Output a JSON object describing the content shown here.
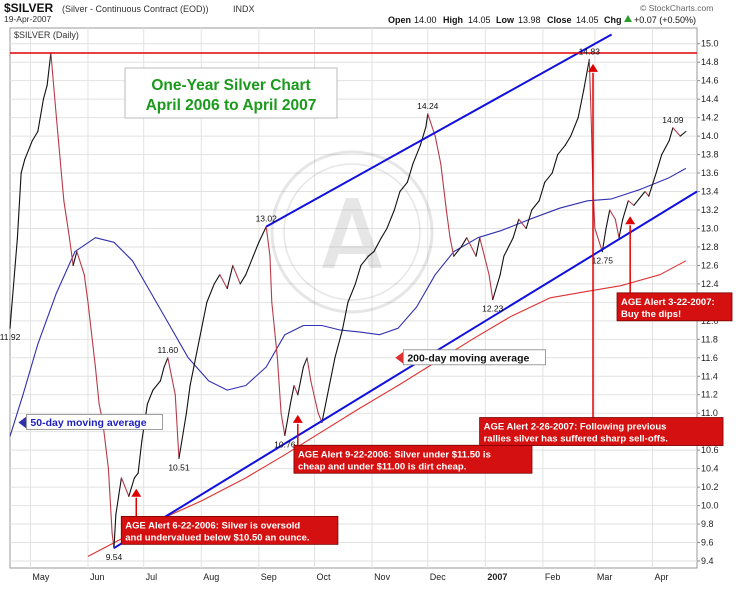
{
  "header": {
    "symbol": "$SILVER",
    "description": "(Silver - Continuous Contract (EOD))",
    "exchange": "INDX",
    "date": "19-Apr-2007",
    "open_label": "Open",
    "open": "14.00",
    "high_label": "High",
    "high": "14.05",
    "low_label": "Low",
    "low": "13.98",
    "close_label": "Close",
    "close": "14.05",
    "chg_label": "Chg",
    "chg": "+0.07 (+0.50%)",
    "up_arrow_color": "#2a9d2a",
    "watermark_url": "© StockCharts.com",
    "panel_label": "$SILVER (Daily)"
  },
  "title_box": {
    "line1": "One-Year Silver Chart",
    "line2": "April 2006 to April 2007",
    "color": "#1a9a1a"
  },
  "colors": {
    "price": "#b83a4a",
    "price_up": "#111111",
    "ma50": "#3030b0",
    "ma200": "#e03030",
    "trendline": "#1010e0",
    "resistance": "#e00000",
    "alert_bg": "#d41010",
    "arrow": "#e00000",
    "grid": "#e2e2e2"
  },
  "chart_data": {
    "type": "line",
    "title": "One-Year Silver Chart",
    "subtitle": "April 2006 to April 2007",
    "x_ticks": [
      "May",
      "Jun",
      "Jul",
      "Aug",
      "Sep",
      "Oct",
      "Nov",
      "Dec",
      "2007",
      "Feb",
      "Mar",
      "Apr"
    ],
    "x_domain": [
      "2006-04-20",
      "2007-04-25"
    ],
    "ylim": [
      9.4,
      15.1
    ],
    "y_ticks": [
      "9.4",
      "9.6",
      "9.8",
      "10.0",
      "10.2",
      "10.4",
      "10.6",
      "10.8",
      "11.0",
      "11.2",
      "11.4",
      "11.6",
      "11.8",
      "12.0",
      "12.2",
      "12.4",
      "12.6",
      "12.8",
      "13.0",
      "13.2",
      "13.4",
      "13.6",
      "13.8",
      "14.0",
      "14.2",
      "14.4",
      "14.6",
      "14.8",
      "15.0"
    ],
    "y_scale": "linear",
    "grid": true,
    "series": [
      {
        "name": "$SILVER",
        "points": [
          [
            "2006-04-20",
            11.92
          ],
          [
            "2006-04-24",
            12.9
          ],
          [
            "2006-04-26",
            13.6
          ],
          [
            "2006-04-28",
            13.75
          ],
          [
            "2006-05-02",
            13.95
          ],
          [
            "2006-05-05",
            14.05
          ],
          [
            "2006-05-08",
            14.4
          ],
          [
            "2006-05-10",
            14.55
          ],
          [
            "2006-05-12",
            14.9
          ],
          [
            "2006-05-15",
            14.2
          ],
          [
            "2006-05-17",
            13.75
          ],
          [
            "2006-05-19",
            13.3
          ],
          [
            "2006-05-22",
            12.9
          ],
          [
            "2006-05-24",
            12.6
          ],
          [
            "2006-05-26",
            12.75
          ],
          [
            "2006-05-30",
            12.5
          ],
          [
            "2006-06-01",
            12.2
          ],
          [
            "2006-06-05",
            11.5
          ],
          [
            "2006-06-07",
            11.1
          ],
          [
            "2006-06-09",
            10.9
          ],
          [
            "2006-06-12",
            10.4
          ],
          [
            "2006-06-14",
            9.7
          ],
          [
            "2006-06-15",
            9.54
          ],
          [
            "2006-06-16",
            9.9
          ],
          [
            "2006-06-19",
            10.3
          ],
          [
            "2006-06-21",
            10.2
          ],
          [
            "2006-06-23",
            10.1
          ],
          [
            "2006-06-26",
            10.3
          ],
          [
            "2006-06-28",
            10.35
          ],
          [
            "2006-06-30",
            10.7
          ],
          [
            "2006-07-03",
            11.1
          ],
          [
            "2006-07-06",
            11.25
          ],
          [
            "2006-07-10",
            11.35
          ],
          [
            "2006-07-12",
            11.5
          ],
          [
            "2006-07-14",
            11.6
          ],
          [
            "2006-07-18",
            11.2
          ],
          [
            "2006-07-20",
            10.51
          ],
          [
            "2006-07-24",
            11.0
          ],
          [
            "2006-07-26",
            11.3
          ],
          [
            "2006-07-28",
            11.5
          ],
          [
            "2006-08-01",
            11.9
          ],
          [
            "2006-08-04",
            12.2
          ],
          [
            "2006-08-08",
            12.4
          ],
          [
            "2006-08-11",
            12.5
          ],
          [
            "2006-08-15",
            12.35
          ],
          [
            "2006-08-18",
            12.6
          ],
          [
            "2006-08-22",
            12.4
          ],
          [
            "2006-08-25",
            12.5
          ],
          [
            "2006-08-29",
            12.7
          ],
          [
            "2006-09-01",
            12.85
          ],
          [
            "2006-09-05",
            13.02
          ],
          [
            "2006-09-07",
            12.7
          ],
          [
            "2006-09-08",
            12.2
          ],
          [
            "2006-09-11",
            11.6
          ],
          [
            "2006-09-13",
            11.0
          ],
          [
            "2006-09-15",
            10.76
          ],
          [
            "2006-09-18",
            11.1
          ],
          [
            "2006-09-20",
            11.3
          ],
          [
            "2006-09-22",
            11.2
          ],
          [
            "2006-09-25",
            11.5
          ],
          [
            "2006-09-27",
            11.6
          ],
          [
            "2006-09-29",
            11.35
          ],
          [
            "2006-10-03",
            11.0
          ],
          [
            "2006-10-05",
            10.9
          ],
          [
            "2006-10-09",
            11.3
          ],
          [
            "2006-10-12",
            11.6
          ],
          [
            "2006-10-16",
            11.9
          ],
          [
            "2006-10-19",
            12.2
          ],
          [
            "2006-10-23",
            12.4
          ],
          [
            "2006-10-26",
            12.6
          ],
          [
            "2006-10-30",
            12.7
          ],
          [
            "2006-11-02",
            12.75
          ],
          [
            "2006-11-06",
            12.9
          ],
          [
            "2006-11-09",
            13.0
          ],
          [
            "2006-11-13",
            13.2
          ],
          [
            "2006-11-16",
            13.4
          ],
          [
            "2006-11-20",
            13.5
          ],
          [
            "2006-11-23",
            13.7
          ],
          [
            "2006-11-27",
            13.9
          ],
          [
            "2006-11-30",
            14.1
          ],
          [
            "2006-12-01",
            14.24
          ],
          [
            "2006-12-05",
            14.0
          ],
          [
            "2006-12-08",
            13.7
          ],
          [
            "2006-12-11",
            13.2
          ],
          [
            "2006-12-13",
            12.9
          ],
          [
            "2006-12-15",
            12.7
          ],
          [
            "2006-12-19",
            12.8
          ],
          [
            "2006-12-22",
            12.9
          ],
          [
            "2006-12-27",
            12.7
          ],
          [
            "2006-12-29",
            12.9
          ],
          [
            "2007-01-03",
            12.5
          ],
          [
            "2007-01-05",
            12.23
          ],
          [
            "2007-01-09",
            12.5
          ],
          [
            "2007-01-11",
            12.7
          ],
          [
            "2007-01-16",
            12.9
          ],
          [
            "2007-01-19",
            13.1
          ],
          [
            "2007-01-23",
            13.0
          ],
          [
            "2007-01-26",
            13.2
          ],
          [
            "2007-01-30",
            13.3
          ],
          [
            "2007-02-02",
            13.5
          ],
          [
            "2007-02-06",
            13.6
          ],
          [
            "2007-02-09",
            13.8
          ],
          [
            "2007-02-13",
            13.9
          ],
          [
            "2007-02-16",
            14.0
          ],
          [
            "2007-02-20",
            14.2
          ],
          [
            "2007-02-23",
            14.5
          ],
          [
            "2007-02-26",
            14.83
          ],
          [
            "2007-02-27",
            14.2
          ],
          [
            "2007-02-28",
            13.4
          ],
          [
            "2007-03-01",
            13.0
          ],
          [
            "2007-03-05",
            12.75
          ],
          [
            "2007-03-07",
            13.0
          ],
          [
            "2007-03-09",
            13.2
          ],
          [
            "2007-03-12",
            13.1
          ],
          [
            "2007-03-14",
            12.9
          ],
          [
            "2007-03-16",
            13.1
          ],
          [
            "2007-03-19",
            13.3
          ],
          [
            "2007-03-22",
            13.25
          ],
          [
            "2007-03-26",
            13.35
          ],
          [
            "2007-03-28",
            13.4
          ],
          [
            "2007-03-30",
            13.35
          ],
          [
            "2007-04-03",
            13.6
          ],
          [
            "2007-04-06",
            13.8
          ],
          [
            "2007-04-10",
            13.95
          ],
          [
            "2007-04-12",
            14.09
          ],
          [
            "2007-04-16",
            14.0
          ],
          [
            "2007-04-19",
            14.05
          ]
        ]
      },
      {
        "name": "50-day moving average",
        "points": [
          [
            "2006-04-20",
            10.75
          ],
          [
            "2006-04-27",
            11.2
          ],
          [
            "2006-05-05",
            11.75
          ],
          [
            "2006-05-15",
            12.3
          ],
          [
            "2006-05-25",
            12.75
          ],
          [
            "2006-06-05",
            12.9
          ],
          [
            "2006-06-15",
            12.85
          ],
          [
            "2006-06-25",
            12.65
          ],
          [
            "2006-07-05",
            12.3
          ],
          [
            "2006-07-15",
            11.95
          ],
          [
            "2006-07-25",
            11.6
          ],
          [
            "2006-08-05",
            11.35
          ],
          [
            "2006-08-15",
            11.25
          ],
          [
            "2006-08-25",
            11.3
          ],
          [
            "2006-09-05",
            11.5
          ],
          [
            "2006-09-15",
            11.85
          ],
          [
            "2006-09-25",
            11.95
          ],
          [
            "2006-10-05",
            11.95
          ],
          [
            "2006-10-15",
            11.9
          ],
          [
            "2006-10-25",
            11.88
          ],
          [
            "2006-11-05",
            11.85
          ],
          [
            "2006-11-15",
            11.92
          ],
          [
            "2006-11-25",
            12.15
          ],
          [
            "2006-12-05",
            12.5
          ],
          [
            "2006-12-15",
            12.75
          ],
          [
            "2006-12-28",
            12.9
          ],
          [
            "2007-01-10",
            12.98
          ],
          [
            "2007-01-25",
            13.1
          ],
          [
            "2007-02-10",
            13.22
          ],
          [
            "2007-02-25",
            13.3
          ],
          [
            "2007-03-10",
            13.32
          ],
          [
            "2007-03-25",
            13.42
          ],
          [
            "2007-04-10",
            13.55
          ],
          [
            "2007-04-19",
            13.65
          ]
        ]
      },
      {
        "name": "200-day moving average",
        "points": [
          [
            "2006-06-01",
            9.45
          ],
          [
            "2006-06-20",
            9.65
          ],
          [
            "2006-07-10",
            9.85
          ],
          [
            "2006-08-01",
            10.05
          ],
          [
            "2006-08-25",
            10.3
          ],
          [
            "2006-09-15",
            10.55
          ],
          [
            "2006-10-05",
            10.8
          ],
          [
            "2006-10-25",
            11.05
          ],
          [
            "2006-11-15",
            11.3
          ],
          [
            "2006-12-05",
            11.55
          ],
          [
            "2006-12-25",
            11.8
          ],
          [
            "2007-01-15",
            12.05
          ],
          [
            "2007-02-05",
            12.25
          ],
          [
            "2007-02-25",
            12.32
          ],
          [
            "2007-03-15",
            12.38
          ],
          [
            "2007-04-05",
            12.5
          ],
          [
            "2007-04-19",
            12.65
          ]
        ]
      }
    ],
    "upper_trendline": [
      [
        "2006-09-05",
        13.02
      ],
      [
        "2007-03-10",
        15.1
      ]
    ],
    "lower_trendline": [
      [
        "2006-06-15",
        9.54
      ],
      [
        "2007-04-25",
        13.4
      ]
    ],
    "resistance_level": 14.9,
    "point_labels": [
      {
        "date": "2006-04-20",
        "value": 11.92,
        "text": "11.92",
        "pos": "below"
      },
      {
        "date": "2006-06-15",
        "value": 9.54,
        "text": "9.54",
        "pos": "below"
      },
      {
        "date": "2006-07-14",
        "value": 11.6,
        "text": "11.60",
        "pos": "above"
      },
      {
        "date": "2006-07-20",
        "value": 10.51,
        "text": "10.51",
        "pos": "below"
      },
      {
        "date": "2006-09-05",
        "value": 13.02,
        "text": "13.02",
        "pos": "above"
      },
      {
        "date": "2006-09-15",
        "value": 10.76,
        "text": "10.76",
        "pos": "below"
      },
      {
        "date": "2006-12-01",
        "value": 14.24,
        "text": "14.24",
        "pos": "above"
      },
      {
        "date": "2007-01-05",
        "value": 12.23,
        "text": "12.23",
        "pos": "below"
      },
      {
        "date": "2007-02-26",
        "value": 14.83,
        "text": "14.83",
        "pos": "above"
      },
      {
        "date": "2007-03-05",
        "value": 12.75,
        "text": "12.75",
        "pos": "below"
      },
      {
        "date": "2007-04-12",
        "value": 14.09,
        "text": "14.09",
        "pos": "above"
      }
    ],
    "ma_labels": [
      {
        "text": "50-day moving average",
        "date": "2006-05-01",
        "value": 10.9,
        "color": "#2020c0"
      },
      {
        "text": "200-day moving average",
        "date": "2006-11-20",
        "value": 11.6,
        "color": "#111111"
      }
    ],
    "alerts": [
      {
        "lines": [
          "AGE Alert 6-22-2006: Silver is oversold",
          "and undervalued below $10.50 an ounce."
        ],
        "box_date": "2006-06-20",
        "box_value": 9.58,
        "arrow_date": "2006-06-27",
        "arrow_value": 10.15,
        "line_from": 9.72
      },
      {
        "lines": [
          "AGE Alert 9-22-2006: Silver under $11.50 is",
          "cheap and under $11.00 is dirt cheap."
        ],
        "box_date": "2006-09-21",
        "box_value": 10.35,
        "arrow_date": "2006-09-22",
        "arrow_value": 10.95,
        "line_from": 10.5
      },
      {
        "lines": [
          "AGE Alert 2-26-2007: Following previous",
          "rallies silver has suffered sharp sell-offs."
        ],
        "box_date": "2006-12-30",
        "box_value": 10.65,
        "arrow_date": "2007-02-28",
        "arrow_value": 14.75,
        "line_from": 10.8
      },
      {
        "lines": [
          "AGE Alert 3-22-2007:",
          "Buy the dips!"
        ],
        "box_date": "2007-03-14",
        "box_value": 12.0,
        "arrow_date": "2007-03-20",
        "arrow_value": 13.1,
        "line_from": 12.15
      }
    ]
  }
}
